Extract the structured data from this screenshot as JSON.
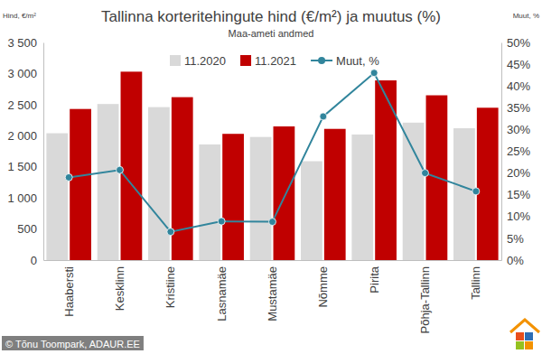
{
  "chart_data": {
    "type": "bar",
    "title": "Tallinna korteritehingute hind (€/m²) ja muutus (%)",
    "subtitle": "Maa-ameti andmed",
    "y_label": "Hind, €/m²",
    "y2_label": "Muut, %",
    "annotations": [
      "© Tõnu Toompark, ADAUR.EE"
    ],
    "categories": [
      "Haabersti",
      "Kesklinn",
      "Kristiine",
      "Lasnamäe",
      "Mustamäe",
      "Nõmme",
      "Pirita",
      "Põhja-Tallinn",
      "Tallinn"
    ],
    "series": [
      {
        "name": "11.2020",
        "type": "bar",
        "color": "#d9d9d9",
        "values": [
          2040,
          2510,
          2460,
          1860,
          1980,
          1590,
          2020,
          2210,
          2120
        ]
      },
      {
        "name": "11.2021",
        "type": "bar",
        "color": "#c00000",
        "values": [
          2430,
          3030,
          2620,
          2030,
          2150,
          2110,
          2890,
          2650,
          2450
        ]
      },
      {
        "name": "Muut, %",
        "type": "line",
        "axis": "y2",
        "color": "#31859c",
        "marker": "circle",
        "line_style": "solid",
        "values": [
          19,
          20.7,
          6.5,
          8.9,
          8.8,
          33,
          43,
          20,
          15.8
        ]
      }
    ],
    "ylim": [
      0,
      3500
    ],
    "yticks": [
      0,
      500,
      {
        "value": 1000,
        "label": "1 000"
      },
      {
        "value": 1500,
        "label": "1 500"
      },
      {
        "value": 2000,
        "label": "2 000"
      },
      {
        "value": 2500,
        "label": "2 500"
      },
      {
        "value": 3000,
        "label": "3 000"
      },
      {
        "value": 3500,
        "label": "3 500"
      }
    ],
    "y2lim": [
      0,
      50
    ],
    "y2ticks": [
      {
        "value": 0,
        "label": "0%"
      },
      {
        "value": 5,
        "label": "5%"
      },
      {
        "value": 10,
        "label": "10%"
      },
      {
        "value": 15,
        "label": "15%"
      },
      {
        "value": 20,
        "label": "20%"
      },
      {
        "value": 25,
        "label": "25%"
      },
      {
        "value": 30,
        "label": "30%"
      },
      {
        "value": 35,
        "label": "35%"
      },
      {
        "value": 40,
        "label": "40%"
      },
      {
        "value": 45,
        "label": "45%"
      },
      {
        "value": 50,
        "label": "50%"
      }
    ],
    "grid": false,
    "legend": "top"
  }
}
